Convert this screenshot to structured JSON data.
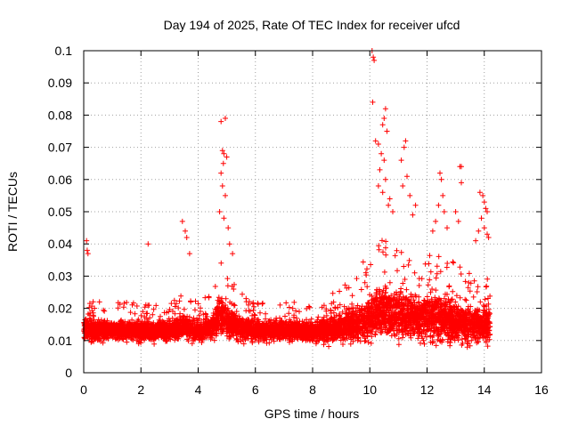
{
  "chart_data": {
    "type": "scatter",
    "title": "Day 194 of 2025, Rate Of TEC Index for receiver ufcd",
    "xlabel": "GPS time / hours",
    "ylabel": "ROTI / TECUs",
    "xlim": [
      0,
      16
    ],
    "ylim": [
      0,
      0.1
    ],
    "x_ticks": [
      0,
      2,
      4,
      6,
      8,
      10,
      12,
      14,
      16
    ],
    "x_tick_labels": [
      "0",
      "2",
      "4",
      "6",
      "8",
      "10",
      "12",
      "14",
      "16"
    ],
    "y_ticks": [
      0,
      0.01,
      0.02,
      0.03,
      0.04,
      0.05,
      0.06,
      0.07,
      0.08,
      0.09,
      0.1
    ],
    "y_tick_labels": [
      "0",
      "0.01",
      "0.02",
      "0.03",
      "0.04",
      "0.05",
      "0.06",
      "0.07",
      "0.08",
      "0.09",
      "0.1"
    ],
    "grid": true,
    "marker": "+",
    "color": "#ff0000",
    "data_x_range": [
      0,
      14.2
    ],
    "envelope": {
      "x": [
        0.0,
        0.5,
        1.0,
        1.5,
        2.0,
        2.5,
        3.0,
        3.5,
        4.0,
        4.5,
        4.75,
        5.0,
        5.5,
        6.0,
        6.5,
        7.0,
        7.5,
        8.0,
        8.5,
        9.0,
        9.5,
        10.0,
        10.25,
        10.5,
        11.0,
        11.5,
        12.0,
        12.5,
        13.0,
        13.5,
        14.0,
        14.2
      ],
      "center": [
        0.014,
        0.013,
        0.013,
        0.013,
        0.013,
        0.013,
        0.013,
        0.014,
        0.013,
        0.014,
        0.018,
        0.016,
        0.014,
        0.013,
        0.013,
        0.013,
        0.013,
        0.013,
        0.013,
        0.014,
        0.015,
        0.017,
        0.019,
        0.019,
        0.018,
        0.017,
        0.017,
        0.017,
        0.016,
        0.015,
        0.015,
        0.015
      ],
      "spread": [
        0.006,
        0.005,
        0.005,
        0.005,
        0.005,
        0.005,
        0.005,
        0.006,
        0.005,
        0.006,
        0.01,
        0.008,
        0.006,
        0.005,
        0.005,
        0.005,
        0.005,
        0.005,
        0.006,
        0.007,
        0.009,
        0.012,
        0.014,
        0.013,
        0.012,
        0.011,
        0.011,
        0.011,
        0.01,
        0.009,
        0.009,
        0.009
      ]
    },
    "points_per_hour": 420,
    "outliers": [
      {
        "x": 0.1,
        "y": 0.041
      },
      {
        "x": 0.12,
        "y": 0.038
      },
      {
        "x": 0.15,
        "y": 0.037
      },
      {
        "x": 2.25,
        "y": 0.04
      },
      {
        "x": 3.45,
        "y": 0.047
      },
      {
        "x": 3.55,
        "y": 0.044
      },
      {
        "x": 3.6,
        "y": 0.042
      },
      {
        "x": 3.7,
        "y": 0.037
      },
      {
        "x": 4.8,
        "y": 0.078
      },
      {
        "x": 4.95,
        "y": 0.079
      },
      {
        "x": 4.85,
        "y": 0.069
      },
      {
        "x": 4.9,
        "y": 0.068
      },
      {
        "x": 5.0,
        "y": 0.067
      },
      {
        "x": 4.88,
        "y": 0.065
      },
      {
        "x": 4.8,
        "y": 0.062
      },
      {
        "x": 4.85,
        "y": 0.058
      },
      {
        "x": 4.95,
        "y": 0.055
      },
      {
        "x": 4.75,
        "y": 0.05
      },
      {
        "x": 4.9,
        "y": 0.048
      },
      {
        "x": 5.05,
        "y": 0.045
      },
      {
        "x": 5.1,
        "y": 0.04
      },
      {
        "x": 5.2,
        "y": 0.037
      },
      {
        "x": 10.08,
        "y": 0.1
      },
      {
        "x": 10.12,
        "y": 0.098
      },
      {
        "x": 10.15,
        "y": 0.097
      },
      {
        "x": 10.1,
        "y": 0.084
      },
      {
        "x": 10.55,
        "y": 0.082
      },
      {
        "x": 10.5,
        "y": 0.079
      },
      {
        "x": 10.45,
        "y": 0.077
      },
      {
        "x": 10.6,
        "y": 0.075
      },
      {
        "x": 10.2,
        "y": 0.072
      },
      {
        "x": 10.3,
        "y": 0.071
      },
      {
        "x": 10.4,
        "y": 0.068
      },
      {
        "x": 10.5,
        "y": 0.066
      },
      {
        "x": 10.35,
        "y": 0.063
      },
      {
        "x": 10.55,
        "y": 0.06
      },
      {
        "x": 10.3,
        "y": 0.058
      },
      {
        "x": 10.45,
        "y": 0.056
      },
      {
        "x": 10.7,
        "y": 0.054
      },
      {
        "x": 10.65,
        "y": 0.052
      },
      {
        "x": 10.8,
        "y": 0.05
      },
      {
        "x": 11.25,
        "y": 0.072
      },
      {
        "x": 11.2,
        "y": 0.07
      },
      {
        "x": 11.1,
        "y": 0.066
      },
      {
        "x": 11.3,
        "y": 0.061
      },
      {
        "x": 11.15,
        "y": 0.058
      },
      {
        "x": 11.4,
        "y": 0.055
      },
      {
        "x": 11.6,
        "y": 0.052
      },
      {
        "x": 11.5,
        "y": 0.049
      },
      {
        "x": 12.45,
        "y": 0.062
      },
      {
        "x": 12.5,
        "y": 0.06
      },
      {
        "x": 12.55,
        "y": 0.055
      },
      {
        "x": 12.4,
        "y": 0.052
      },
      {
        "x": 12.6,
        "y": 0.05
      },
      {
        "x": 12.3,
        "y": 0.047
      },
      {
        "x": 12.7,
        "y": 0.045
      },
      {
        "x": 12.2,
        "y": 0.044
      },
      {
        "x": 13.15,
        "y": 0.064
      },
      {
        "x": 13.2,
        "y": 0.064
      },
      {
        "x": 13.2,
        "y": 0.059
      },
      {
        "x": 13.0,
        "y": 0.05
      },
      {
        "x": 13.1,
        "y": 0.047
      },
      {
        "x": 13.85,
        "y": 0.056
      },
      {
        "x": 13.95,
        "y": 0.055
      },
      {
        "x": 14.0,
        "y": 0.053
      },
      {
        "x": 14.05,
        "y": 0.051
      },
      {
        "x": 14.1,
        "y": 0.05
      },
      {
        "x": 13.9,
        "y": 0.048
      },
      {
        "x": 14.0,
        "y": 0.045
      },
      {
        "x": 14.1,
        "y": 0.043
      },
      {
        "x": 14.15,
        "y": 0.042
      },
      {
        "x": 13.8,
        "y": 0.044
      },
      {
        "x": 13.7,
        "y": 0.041
      }
    ]
  }
}
